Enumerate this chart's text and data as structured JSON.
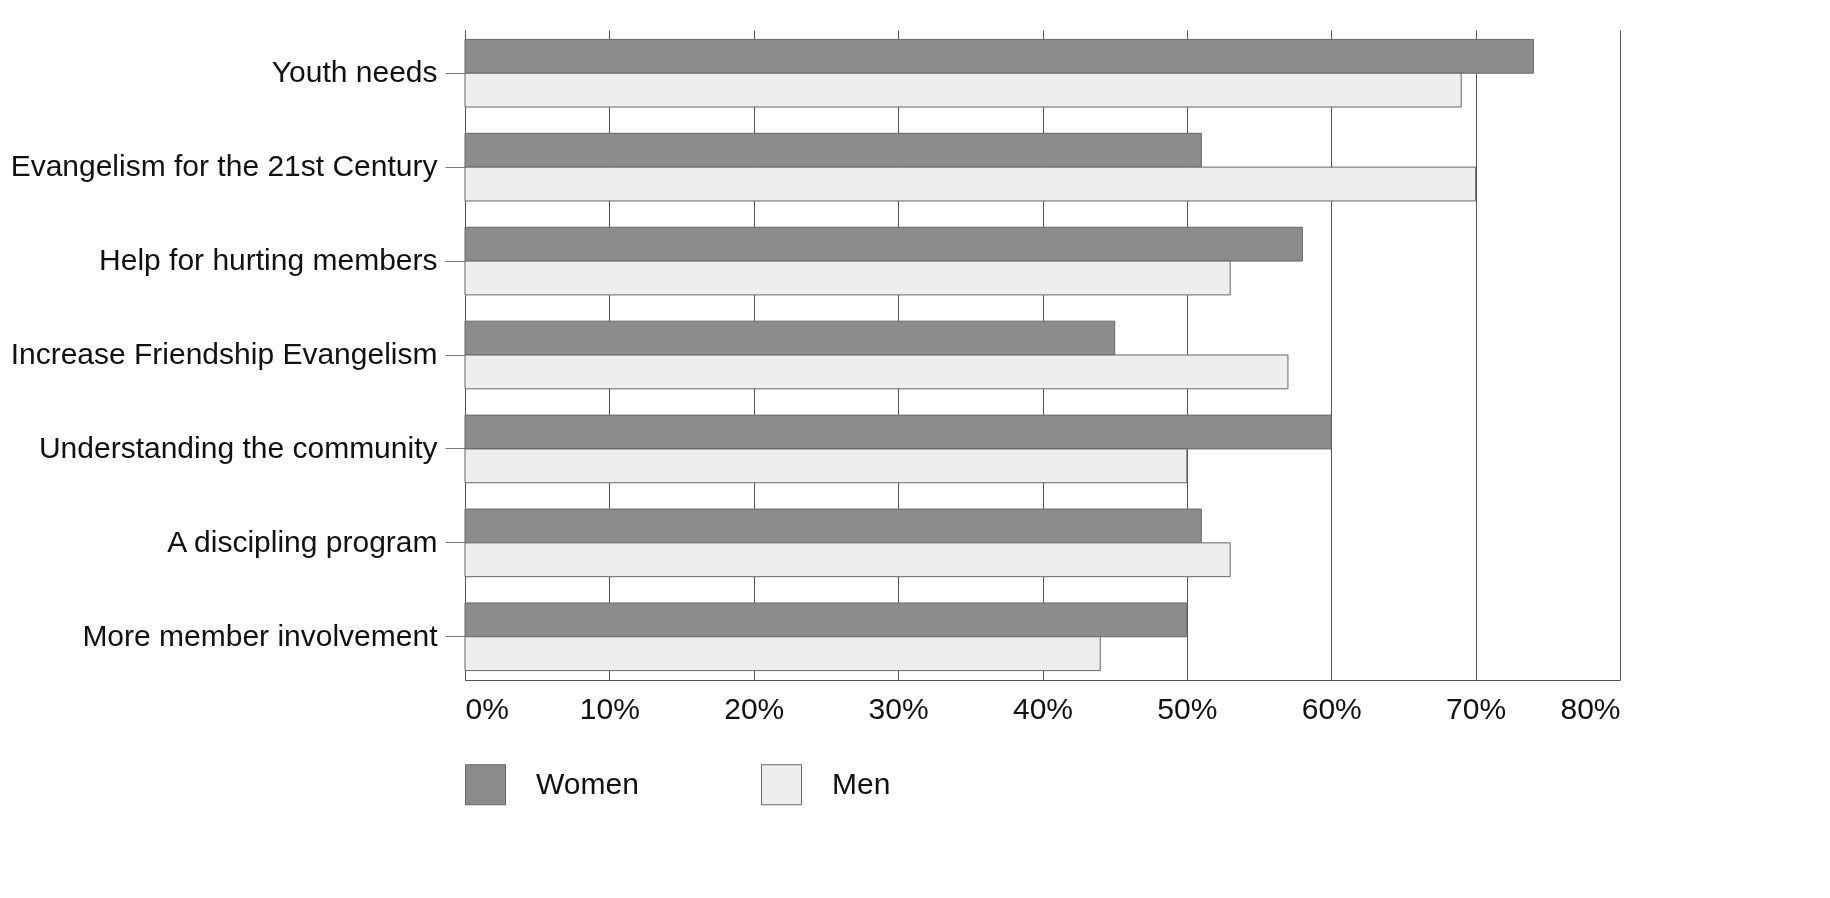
{
  "chart_data": {
    "type": "bar",
    "orientation": "horizontal",
    "categories": [
      "Youth needs",
      "Evangelism for the 21st Century",
      "Help for hurting members",
      "Increase Friendship Evangelism",
      "Understanding the community",
      "A discipling program",
      "More member involvement"
    ],
    "series": [
      {
        "name": "Women",
        "color": "#8c8c8c",
        "values": [
          74,
          51,
          58,
          45,
          60,
          51,
          50
        ]
      },
      {
        "name": "Men",
        "color": "#eeeeee",
        "values": [
          69,
          70,
          53,
          57,
          50,
          53,
          44
        ]
      }
    ],
    "xlim": [
      0,
      80
    ],
    "xticks": [
      {
        "value": 0,
        "label": "0%"
      },
      {
        "value": 10,
        "label": "10%"
      },
      {
        "value": 20,
        "label": "20%"
      },
      {
        "value": 30,
        "label": "30%"
      },
      {
        "value": 40,
        "label": "40%"
      },
      {
        "value": 50,
        "label": "50%"
      },
      {
        "value": 60,
        "label": "60%"
      },
      {
        "value": 70,
        "label": "70%"
      },
      {
        "value": 80,
        "label": "80%"
      }
    ],
    "grid": "x",
    "legend": "bottom"
  }
}
